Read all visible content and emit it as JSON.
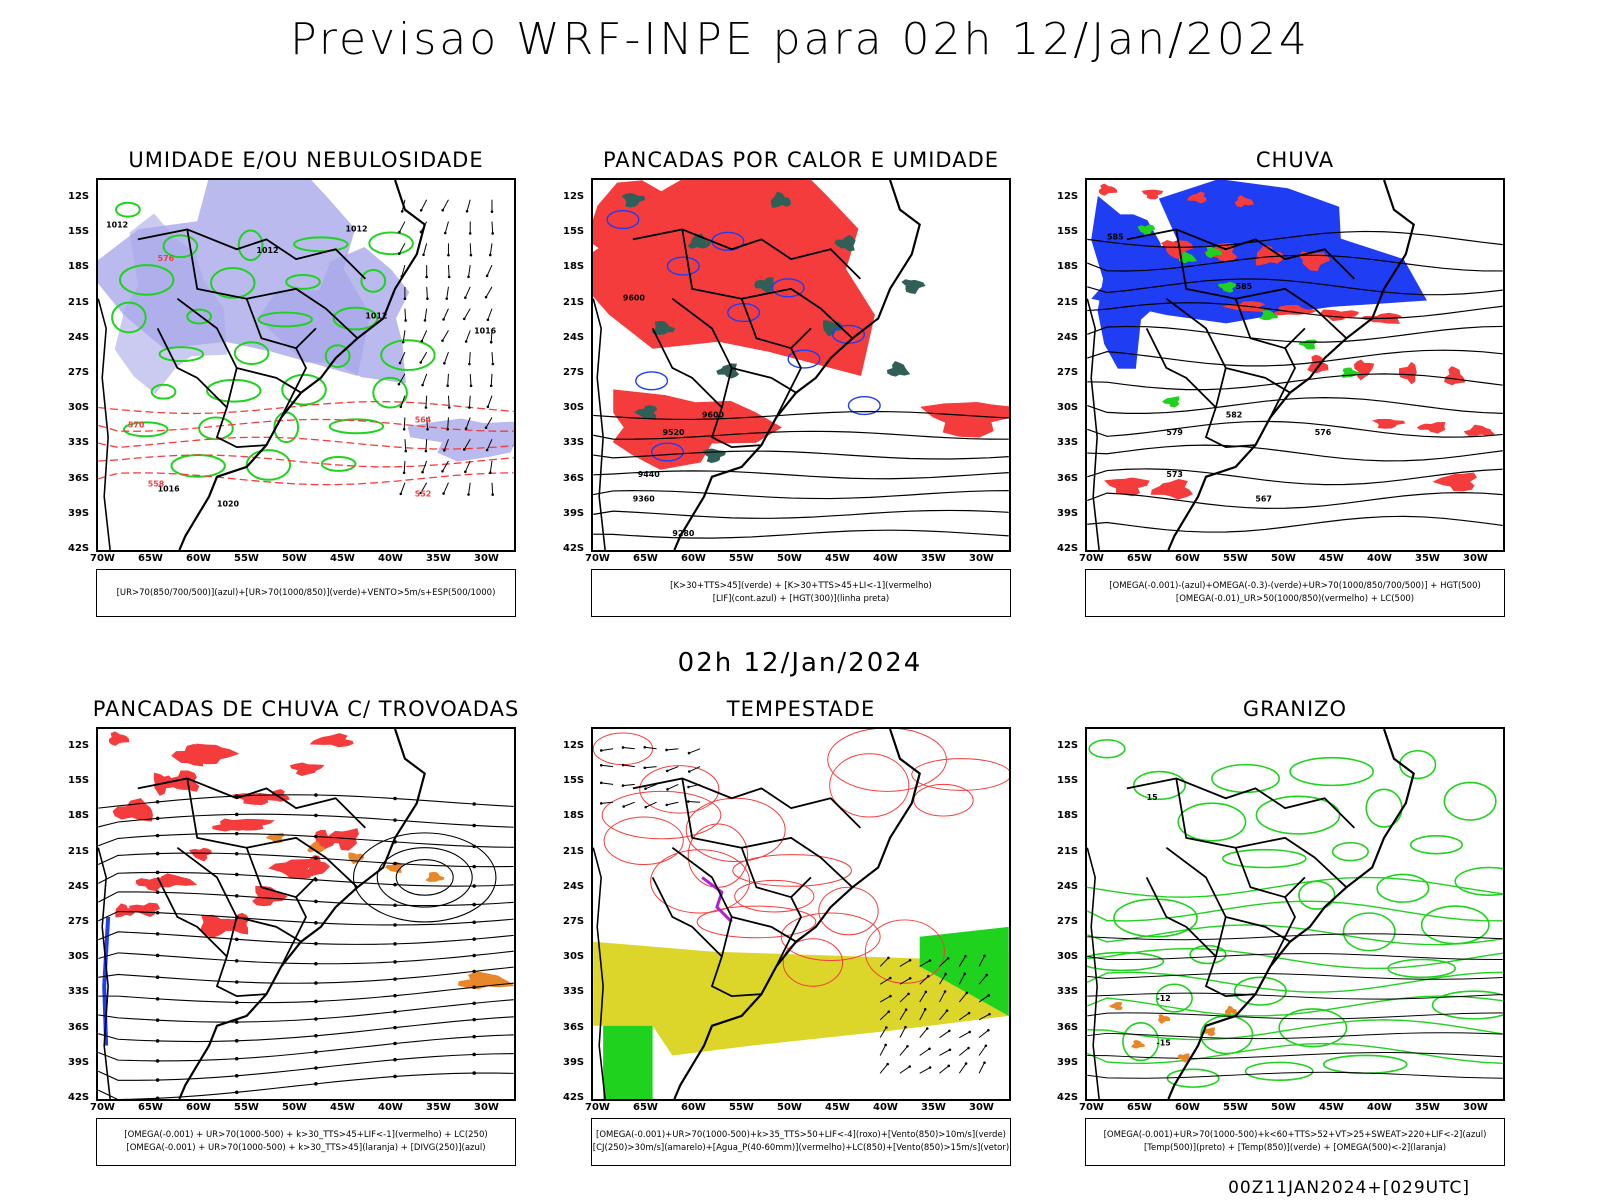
{
  "main_title": "Previsao WRF-INPE  para 02h 12/Jan/2024",
  "mid_date": "02h 12/Jan/2024",
  "footer": "00Z11JAN2024+[029UTC]",
  "axes": {
    "lat_labels": [
      "12S",
      "15S",
      "18S",
      "21S",
      "24S",
      "27S",
      "30S",
      "33S",
      "36S",
      "39S",
      "42S"
    ],
    "lon_labels": [
      "70W",
      "65W",
      "60W",
      "55W",
      "50W",
      "45W",
      "40W",
      "35W",
      "30W"
    ]
  },
  "colors": {
    "blue_shade": "#a9a9ea",
    "blue": "#1f3df2",
    "green": "#1ed21e",
    "red": "#f43c3c",
    "dark_teal": "#2f5f56",
    "orange": "#e8862a",
    "yellow": "#dcd52a",
    "purple": "#b21fd0"
  },
  "panels": [
    {
      "title": "UMIDADE E/OU NEBULOSIDADE",
      "legend": [
        "[UR>70(850/700/500)](azul)+[UR>70(1000/850)](verde)+VENTO>5m/s+ESP(500/1000)"
      ],
      "contour_labels": [
        "1012",
        "1012",
        "1012",
        "1012",
        "1016",
        "1016",
        "1020",
        "576",
        "570",
        "564",
        "558",
        "552"
      ]
    },
    {
      "title": "PANCADAS POR CALOR E UMIDADE",
      "legend": [
        "[K>30+TTS>45](verde) + [K>30+TTS>45+LI<-1](vermelho)",
        "[LIF](cont.azul) + [HGT(300)](linha preta)"
      ],
      "contour_labels": [
        "9600",
        "9600",
        "9520",
        "9440",
        "9360",
        "9280"
      ]
    },
    {
      "title": "CHUVA",
      "legend": [
        "[OMEGA(-0.001)-(azul)+OMEGA(-0.3)-(verde)+UR>70(1000/850/700/500)] + HGT(500)",
        "[OMEGA(-0.01)_UR>50(1000/850)(vermelho) + LC(500)"
      ],
      "contour_labels": [
        "585",
        "585",
        "582",
        "579",
        "576",
        "573",
        "567"
      ]
    },
    {
      "title": "PANCADAS DE CHUVA C/ TROVOADAS",
      "legend": [
        "[OMEGA(-0.001) + UR>70(1000-500) + k>30_TTS>45+LIF<-1](vermelho) + LC(250)",
        "[OMEGA(-0.001) + UR>70(1000-500) + k>30_TTS>45](laranja) + [DIVG(250)](azul)"
      ],
      "contour_labels": []
    },
    {
      "title": "TEMPESTADE",
      "legend": [
        "[OMEGA(-0.001)+UR>70(1000-500)+k>35_TTS>50+LIF<-4](roxo)+[Vento(850)>10m/s](verde)",
        "[CJ(250)>30m/s](amarelo)+[Agua_P(40-60mm)](vermelho)+LC(850)+[Vento(850)>15m/s](vetor)"
      ],
      "contour_labels": []
    },
    {
      "title": "GRANIZO",
      "legend": [
        "[OMEGA(-0.001)+UR>70(1000-500)+k<60+TTS>52+VT>25+SWEAT>220+LIF<-2](azul)",
        "[Temp(500)](preto) + [Temp(850)](verde) + [OMEGA(500)<-2](laranja)"
      ],
      "contour_labels": [
        "-12",
        "-15",
        "15"
      ]
    }
  ]
}
